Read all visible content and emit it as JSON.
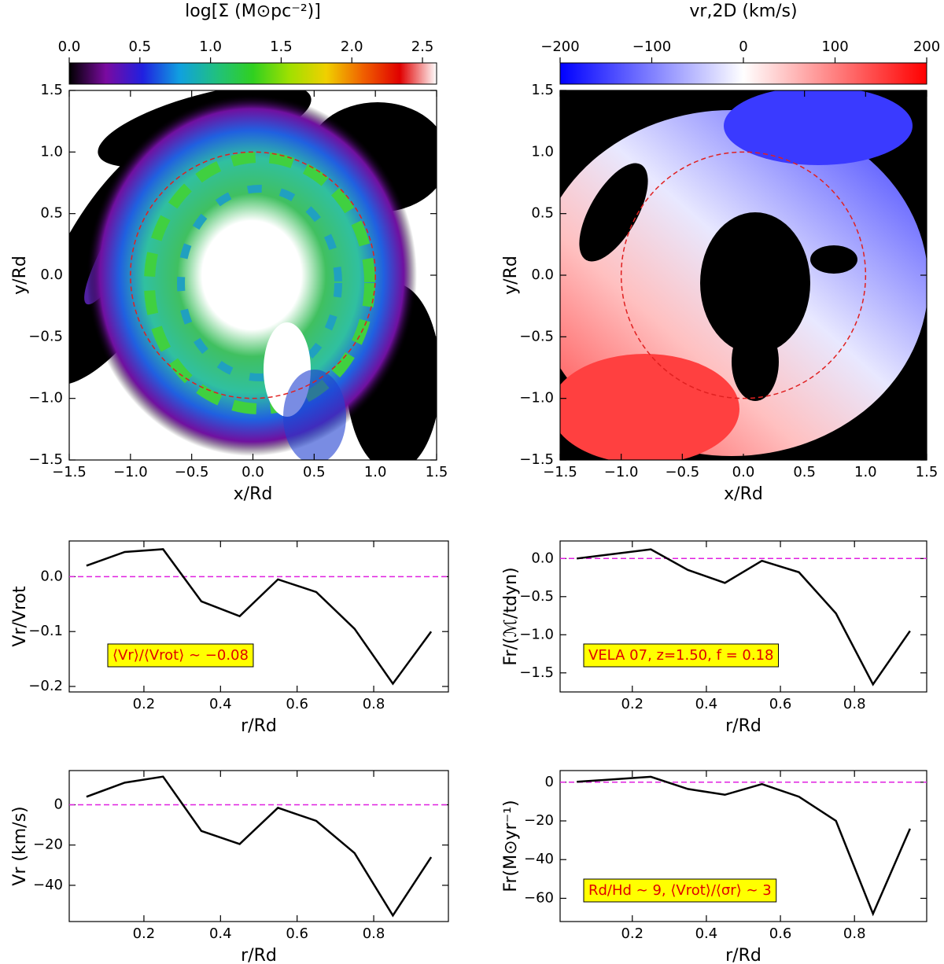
{
  "chart_data": [
    {
      "type": "image",
      "title": "log[Σ (M⊙pc⁻²)]",
      "colorbar_colors": [
        "#000000",
        "#7a0aa0",
        "#2020e0",
        "#10a0e0",
        "#20c080",
        "#30d020",
        "#a0e000",
        "#f0d000",
        "#f06000",
        "#e00000",
        "#ffffff"
      ],
      "colorbar_lim": [
        0,
        2.6
      ],
      "colorbar_ticks": [
        {
          "value": 0,
          "label": "0.0"
        },
        {
          "value": 0.5,
          "label": "0.5"
        },
        {
          "value": 1,
          "label": "1.0"
        },
        {
          "value": 1.5,
          "label": "1.5"
        },
        {
          "value": 2,
          "label": "2.0"
        },
        {
          "value": 2.5,
          "label": "2.5"
        }
      ],
      "xlabel": "x/Rd",
      "ylabel": "y/Rd",
      "xlim": [
        -1.5,
        1.5
      ],
      "ylim": [
        -1.5,
        1.5
      ],
      "xticks": [
        {
          "value": -1.5,
          "label": "−1.5"
        },
        {
          "value": -1,
          "label": "−1.0"
        },
        {
          "value": -0.5,
          "label": "−0.5"
        },
        {
          "value": 0,
          "label": "0.0"
        },
        {
          "value": 0.5,
          "label": "0.5"
        },
        {
          "value": 1,
          "label": "1.0"
        },
        {
          "value": 1.5,
          "label": "1.5"
        }
      ],
      "yticks": [
        {
          "value": -1.5,
          "label": "−1.5"
        },
        {
          "value": -1,
          "label": "−1.0"
        },
        {
          "value": -0.5,
          "label": "−0.5"
        },
        {
          "value": 0,
          "label": "0.0"
        },
        {
          "value": 0.5,
          "label": "0.5"
        },
        {
          "value": 1,
          "label": "1.0"
        },
        {
          "value": 1.5,
          "label": "1.5"
        }
      ],
      "circle_radius": 1,
      "circle_color": "#e02020"
    },
    {
      "type": "image",
      "title": "vr,2D (km/s)",
      "colorbar_colors": [
        "#0000ff",
        "#8080ff",
        "#ffffff",
        "#ff8080",
        "#ff0000"
      ],
      "colorbar_lim": [
        -200,
        200
      ],
      "colorbar_ticks": [
        {
          "value": -200,
          "label": "−200"
        },
        {
          "value": -100,
          "label": "−100"
        },
        0,
        100,
        200
      ],
      "xlabel": "x/Rd",
      "ylabel": "y/Rd",
      "xlim": [
        -1.5,
        1.5
      ],
      "ylim": [
        -1.5,
        1.5
      ],
      "xticks": [
        {
          "value": -1.5,
          "label": "−1.5"
        },
        {
          "value": -1,
          "label": "−1.0"
        },
        {
          "value": -0.5,
          "label": "−0.5"
        },
        {
          "value": 0,
          "label": "0.0"
        },
        {
          "value": 0.5,
          "label": "0.5"
        },
        {
          "value": 1,
          "label": "1.0"
        },
        {
          "value": 1.5,
          "label": "1.5"
        }
      ],
      "yticks": [
        {
          "value": -1.5,
          "label": "−1.5"
        },
        {
          "value": -1,
          "label": "−1.0"
        },
        {
          "value": -0.5,
          "label": "−0.5"
        },
        {
          "value": 0,
          "label": "0.0"
        },
        {
          "value": 0.5,
          "label": "0.5"
        },
        {
          "value": 1,
          "label": "1.0"
        },
        {
          "value": 1.5,
          "label": "1.5"
        }
      ],
      "circle_radius": 1,
      "circle_color": "#e02020"
    },
    {
      "type": "line",
      "xlabel": "r/Rd",
      "ylabel": "Vr/Vrot",
      "x": [
        0.05,
        0.15,
        0.25,
        0.35,
        0.45,
        0.55,
        0.65,
        0.75,
        0.85,
        0.95
      ],
      "values": [
        0.02,
        0.045,
        0.05,
        -0.045,
        -0.072,
        -0.005,
        -0.028,
        -0.095,
        -0.195,
        -0.1
      ],
      "color": "#000000",
      "xlim": [
        0.005,
        0.995
      ],
      "ylim": [
        -0.21,
        0.065
      ],
      "xticks": [
        0.2,
        0.4,
        0.6,
        0.8
      ],
      "yticks": [
        {
          "value": -0.2,
          "label": "−0.2"
        },
        {
          "value": -0.1,
          "label": "−0.1"
        },
        {
          "value": 0,
          "label": "0.0"
        }
      ],
      "hline": 0,
      "hline_color": "#e020e0",
      "annotation": "⟨Vr⟩/⟨Vrot⟩ ∼ −0.08"
    },
    {
      "type": "line",
      "xlabel": "r/Rd",
      "ylabel": "Fr/(ℳ/tdyn)",
      "x": [
        0.05,
        0.15,
        0.25,
        0.35,
        0.45,
        0.55,
        0.65,
        0.75,
        0.85,
        0.95
      ],
      "values": [
        0.0,
        0.06,
        0.12,
        -0.15,
        -0.32,
        -0.03,
        -0.18,
        -0.72,
        -1.65,
        -0.95
      ],
      "color": "#000000",
      "xlim": [
        0.005,
        0.995
      ],
      "ylim": [
        -1.75,
        0.23
      ],
      "xticks": [
        0.2,
        0.4,
        0.6,
        0.8
      ],
      "yticks": [
        {
          "value": -1.5,
          "label": "−1.5"
        },
        {
          "value": -1,
          "label": "−1.0"
        },
        {
          "value": -0.5,
          "label": "−0.5"
        },
        {
          "value": 0,
          "label": "0.0"
        }
      ],
      "hline": 0,
      "hline_color": "#e020e0",
      "annotation": "VELA 07, z=1.50, f = 0.18"
    },
    {
      "type": "line",
      "xlabel": "r/Rd",
      "ylabel": "Vr (km/s)",
      "x": [
        0.05,
        0.15,
        0.25,
        0.35,
        0.45,
        0.55,
        0.65,
        0.75,
        0.85,
        0.95
      ],
      "values": [
        4,
        11,
        14,
        -13,
        -19.5,
        -1.5,
        -8,
        -24,
        -55,
        -26
      ],
      "color": "#000000",
      "xlim": [
        0.005,
        0.995
      ],
      "ylim": [
        -58,
        17
      ],
      "xticks": [
        0.2,
        0.4,
        0.6,
        0.8
      ],
      "yticks": [
        {
          "value": -40,
          "label": "−40"
        },
        {
          "value": -20,
          "label": "−20"
        },
        0
      ],
      "hline": 0,
      "hline_color": "#e020e0"
    },
    {
      "type": "line",
      "xlabel": "r/Rd",
      "ylabel": "Fr(M⊙yr⁻¹)",
      "x": [
        0.05,
        0.15,
        0.25,
        0.35,
        0.45,
        0.55,
        0.65,
        0.75,
        0.85,
        0.95
      ],
      "values": [
        0.2,
        1.5,
        2.8,
        -3.5,
        -6.5,
        -1,
        -7.5,
        -20,
        -68,
        -24
      ],
      "color": "#000000",
      "xlim": [
        0.005,
        0.995
      ],
      "ylim": [
        -72,
        6
      ],
      "xticks": [
        0.2,
        0.4,
        0.6,
        0.8
      ],
      "yticks": [
        {
          "value": -60,
          "label": "−60"
        },
        {
          "value": -40,
          "label": "−40"
        },
        {
          "value": -20,
          "label": "−20"
        },
        0
      ],
      "hline": 0,
      "hline_color": "#e020e0",
      "annotation": "Rd/Hd ∼ 9, ⟨Vrot⟩/⟨σr⟩ ∼ 3"
    }
  ]
}
